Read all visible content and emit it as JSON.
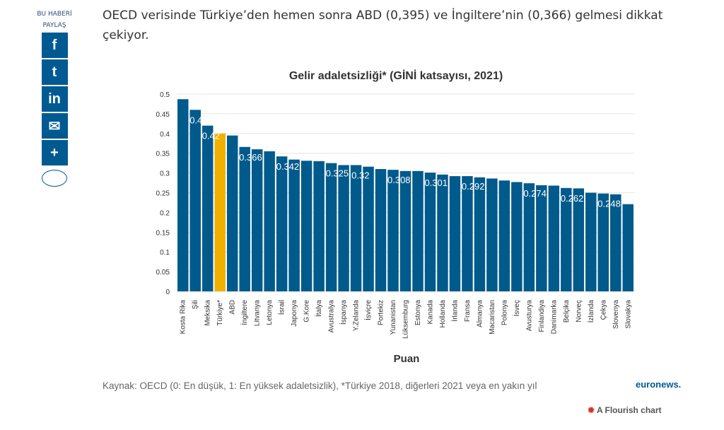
{
  "share": {
    "label": "BU HABERİ PAYLAŞ",
    "buttons": [
      "f",
      "t",
      "in",
      "✉",
      "+"
    ]
  },
  "intro": "OECD verisinde Türkiye’den hemen sonra ABD (0,395) ve İngiltere’nin (0,366) gelmesi dikkat çekiyor.",
  "source": "Kaynak: OECD (0: En düşük, 1: En yüksek adaletsizlik), *Türkiye 2018, diğerleri 2021 veya en yakın yıl",
  "logo": "euronews.",
  "flourish": "A Flourish chart",
  "colors": {
    "bar": "#005a8c",
    "highlight": "#f0b000"
  },
  "chart_data": {
    "type": "bar",
    "title": "Gelir adaletsizliği* (GİNİ katsayısı, 2021)",
    "xlabel": "Puan",
    "ylabel": "",
    "ylim": [
      0,
      0.5
    ],
    "yticks": [
      "0",
      "0.05",
      "0.1",
      "0.15",
      "0.2",
      "0.25",
      "0.3",
      "0.35",
      "0.4",
      "0.45",
      "0.5"
    ],
    "highlight": "Türkiye*",
    "categories": [
      "Kosta Rika",
      "Şili",
      "Meksika",
      "Türkiye*",
      "ABD",
      "İngiltere",
      "Litvanya",
      "Letonya",
      "İsrail",
      "Japonya",
      "G.Kore",
      "İtalya",
      "Avustralya",
      "İspanya",
      "Y.Zelanda",
      "İsviçre",
      "Portekiz",
      "Yunanistan",
      "Lüksemburg",
      "Estonya",
      "Kanada",
      "Hollanda",
      "İrlanda",
      "Fransa",
      "Almanya",
      "Macaristan",
      "Polonya",
      "İsveç",
      "Avusturya",
      "Finlandiya",
      "Danimarka",
      "Belçika",
      "Norveç",
      "İzlanda",
      "Çekya",
      "Slovenya",
      "Slovakya"
    ],
    "values": [
      0.487,
      0.46,
      0.42,
      0.4,
      0.395,
      0.366,
      0.36,
      0.355,
      0.342,
      0.334,
      0.331,
      0.33,
      0.325,
      0.32,
      0.32,
      0.316,
      0.31,
      0.308,
      0.305,
      0.305,
      0.301,
      0.296,
      0.292,
      0.292,
      0.289,
      0.286,
      0.281,
      0.277,
      0.274,
      0.269,
      0.268,
      0.262,
      0.261,
      0.25,
      0.248,
      0.246,
      0.221
    ],
    "data_labels": {
      "Şili": "0.46",
      "Meksika": "0.42",
      "İngiltere": "0.366",
      "İsrail": "0.342",
      "Avustralya": "0.325",
      "İspanya": "0.32",
      "Yunanistan": "0.308",
      "Kanada": "0.301",
      "Fransa": "0.292",
      "Avusturya": "0.274",
      "Belçika": "0.262",
      "Çekya": "0.248"
    }
  }
}
